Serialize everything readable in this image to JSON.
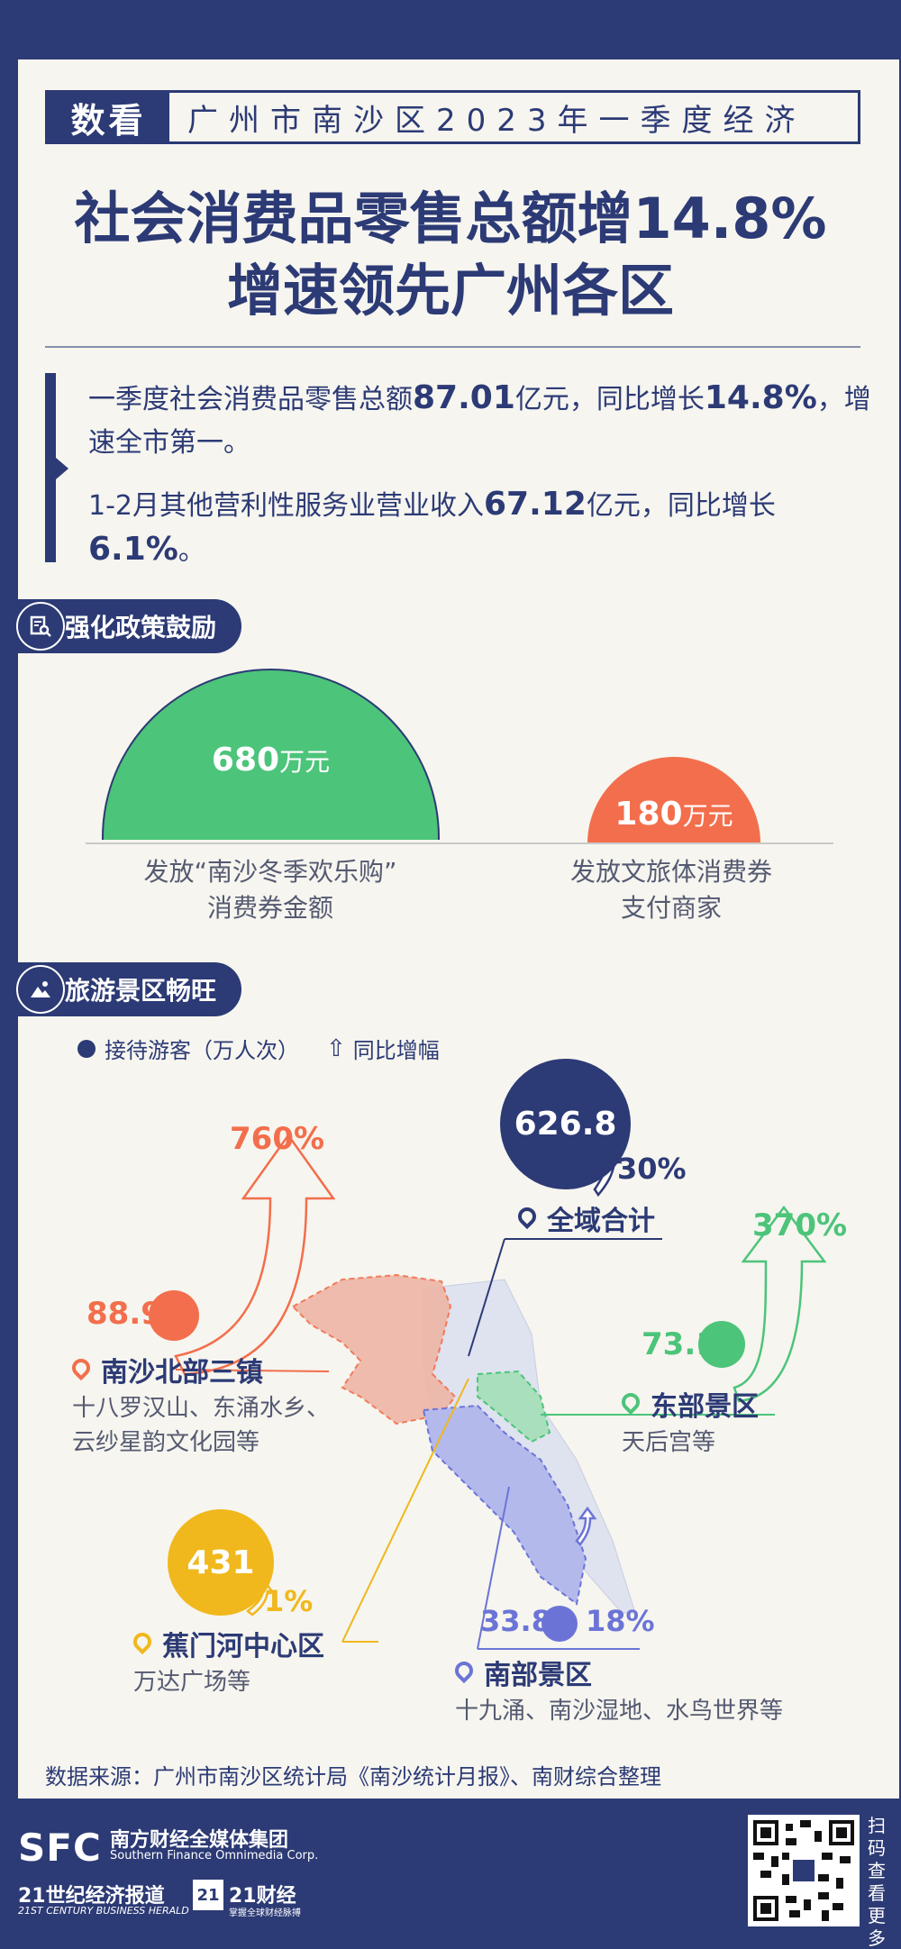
{
  "header": {
    "tag": "数看",
    "subtitle": "广州市南沙区2023年一季度经济"
  },
  "headline": {
    "line1": "社会消费品零售总额增14.8%",
    "line2": "增速领先广州各区"
  },
  "summary": {
    "p1_a": "一季度社会消费品零售总额",
    "p1_v1": "87.01",
    "p1_b": "亿元，同比增长",
    "p1_v2": "14.8%",
    "p1_c": "，增速全市第一。",
    "p2_a": "1-2月其他营利性服务业营业收入",
    "p2_v1": "67.12",
    "p2_b": "亿元，同比增长",
    "p2_v2": "6.1%",
    "p2_c": "。"
  },
  "section_policy": {
    "title": "强化政策鼓励",
    "icon": "document-search-icon",
    "items": [
      {
        "value": "680",
        "unit": "万元",
        "caption_l1": "发放“南沙冬季欢乐购”",
        "caption_l2": "消费券金额",
        "color": "#4cc47a"
      },
      {
        "value": "180",
        "unit": "万元",
        "caption_l1": "发放文旅体消费券",
        "caption_l2": "支付商家",
        "color": "#f36e4c"
      }
    ]
  },
  "section_tourism": {
    "title": "旅游景区畅旺",
    "icon": "mountain-icon",
    "legend_visitors": "接待游客（万人次）",
    "legend_growth": "同比增幅",
    "areas": [
      {
        "name": "全域合计",
        "visitors": "626.8",
        "growth": "30%",
        "desc": "",
        "color": "#2c3a75"
      },
      {
        "name": "南沙北部三镇",
        "visitors": "88.9",
        "growth": "760%",
        "desc_l1": "十八罗汉山、东涌水乡、",
        "desc_l2": "云纱星韵文化园等",
        "color": "#f36e4c"
      },
      {
        "name": "东部景区",
        "visitors": "73.1",
        "growth": "370%",
        "desc_l1": "天后宫等",
        "color": "#4cc47a"
      },
      {
        "name": "蕉门河中心区",
        "visitors": "431",
        "growth": "1%",
        "desc_l1": "万达广场等",
        "color": "#f0b81c"
      },
      {
        "name": "南部景区",
        "visitors": "33.8",
        "growth": "18%",
        "desc_l1": "十九涌、南沙湿地、水鸟世界等",
        "color": "#6b74d6"
      }
    ]
  },
  "source": "数据来源：广州市南沙区统计局《南沙统计月报》、南财综合整理",
  "footer": {
    "sfc_logo": "SFC",
    "sfc_cn": "南方财经全媒体集团",
    "sfc_en": "Southern Finance Omnimedia Corp.",
    "brand1": "21世纪经济报道",
    "brand1_en": "21ST CENTURY BUSINESS HERALD",
    "brand2_box": "21",
    "brand2": "21财经",
    "brand2_sub": "掌握全球财经脉搏",
    "qr_box_label": "21",
    "scan": "扫码查看更多"
  }
}
